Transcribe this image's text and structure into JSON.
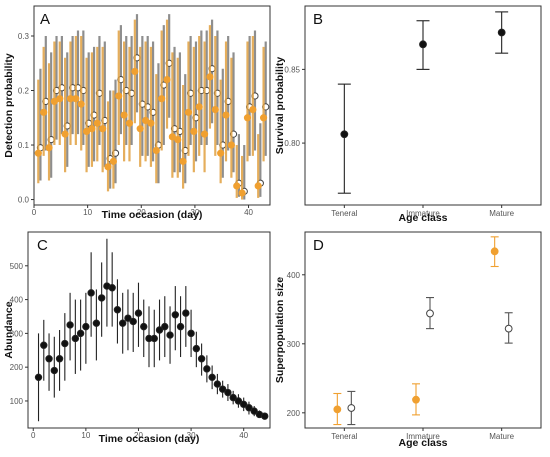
{
  "colors": {
    "orange": "#f0a030",
    "black": "#111111",
    "open": "#ffffff",
    "errbar_gray": "#7a7a7a",
    "errbar_orange": "#e0a040"
  },
  "chart_data": [
    {
      "panel": "A",
      "type": "scatter",
      "xlabel": "Time occasion (day)",
      "ylabel": "Detection probability",
      "xlim": [
        0,
        44
      ],
      "ylim": [
        -0.01,
        0.355
      ],
      "xticks": [
        0,
        10,
        20,
        30,
        40
      ],
      "yticks": [
        0.0,
        0.1,
        0.2,
        0.3
      ],
      "ytick_labels": [
        "0.0",
        "0.1",
        "0.2",
        "0.3"
      ],
      "grid": false,
      "series": [
        {
          "marker": "open-circle",
          "color": "#ffffff",
          "x": [
            1.2,
            2.2,
            3.2,
            4.2,
            5.2,
            6.2,
            7.2,
            8.2,
            9.2,
            10.2,
            11.2,
            12.2,
            13.2,
            14.2,
            15.2,
            16.2,
            17.2,
            18.2,
            19.2,
            20.2,
            21.2,
            22.2,
            23.2,
            24.2,
            25.2,
            26.2,
            27.2,
            28.2,
            29.2,
            30.2,
            31.2,
            32.2,
            33.2,
            34.2,
            35.2,
            36.2,
            37.2,
            38.2,
            39.2,
            40.2,
            41.2,
            42.2,
            43.2
          ],
          "y": [
            0.095,
            0.18,
            0.11,
            0.2,
            0.205,
            0.135,
            0.205,
            0.205,
            0.2,
            0.14,
            0.155,
            0.195,
            0.145,
            0.075,
            0.085,
            0.22,
            0.2,
            0.195,
            0.26,
            0.175,
            0.17,
            0.16,
            0.1,
            0.21,
            0.25,
            0.13,
            0.125,
            0.09,
            0.195,
            0.15,
            0.2,
            0.2,
            0.24,
            0.195,
            0.1,
            0.18,
            0.12,
            0.03,
            0.015,
            0.17,
            0.19,
            0.03,
            0.17
          ],
          "lo": [
            0.035,
            0.09,
            0.04,
            0.11,
            0.12,
            0.06,
            0.12,
            0.12,
            0.1,
            0.06,
            0.07,
            0.1,
            0.06,
            0.02,
            0.03,
            0.12,
            0.1,
            0.1,
            0.16,
            0.08,
            0.08,
            0.07,
            0.03,
            0.1,
            0.15,
            0.05,
            0.05,
            0.03,
            0.1,
            0.07,
            0.1,
            0.1,
            0.14,
            0.1,
            0.04,
            0.09,
            0.05,
            0.005,
            0.0,
            0.08,
            0.09,
            0.005,
            0.08
          ],
          "hi": [
            0.24,
            0.3,
            0.27,
            0.3,
            0.3,
            0.27,
            0.3,
            0.31,
            0.31,
            0.27,
            0.28,
            0.3,
            0.29,
            0.2,
            0.22,
            0.32,
            0.3,
            0.3,
            0.34,
            0.3,
            0.3,
            0.29,
            0.25,
            0.32,
            0.34,
            0.28,
            0.27,
            0.23,
            0.3,
            0.29,
            0.31,
            0.31,
            0.33,
            0.31,
            0.24,
            0.3,
            0.27,
            0.12,
            0.1,
            0.3,
            0.31,
            0.14,
            0.29
          ]
        },
        {
          "marker": "filled-circle",
          "color": "#f0a030",
          "x": [
            0.8,
            1.8,
            2.8,
            3.8,
            4.8,
            5.8,
            6.8,
            7.8,
            8.8,
            9.8,
            10.8,
            11.8,
            12.8,
            13.8,
            14.8,
            15.8,
            16.8,
            17.8,
            18.8,
            19.8,
            20.8,
            21.8,
            22.8,
            23.8,
            24.8,
            25.8,
            26.8,
            27.8,
            28.8,
            29.8,
            30.8,
            31.8,
            32.8,
            33.8,
            34.8,
            35.8,
            36.8,
            37.8,
            38.8,
            39.8,
            40.8,
            41.8,
            42.8
          ],
          "y": [
            0.085,
            0.16,
            0.095,
            0.18,
            0.185,
            0.12,
            0.185,
            0.185,
            0.175,
            0.125,
            0.13,
            0.14,
            0.13,
            0.06,
            0.07,
            0.19,
            0.155,
            0.14,
            0.235,
            0.13,
            0.145,
            0.14,
            0.09,
            0.185,
            0.22,
            0.115,
            0.11,
            0.07,
            0.16,
            0.125,
            0.17,
            0.12,
            0.225,
            0.165,
            0.085,
            0.155,
            0.1,
            0.025,
            0.012,
            0.15,
            0.165,
            0.025,
            0.15
          ],
          "lo": [
            0.03,
            0.08,
            0.035,
            0.1,
            0.1,
            0.05,
            0.1,
            0.1,
            0.09,
            0.05,
            0.06,
            0.07,
            0.05,
            0.015,
            0.02,
            0.1,
            0.07,
            0.07,
            0.14,
            0.06,
            0.07,
            0.06,
            0.03,
            0.09,
            0.13,
            0.04,
            0.04,
            0.02,
            0.08,
            0.05,
            0.08,
            0.05,
            0.13,
            0.08,
            0.03,
            0.07,
            0.04,
            0.003,
            0.0,
            0.07,
            0.08,
            0.003,
            0.07
          ],
          "hi": [
            0.22,
            0.28,
            0.25,
            0.29,
            0.29,
            0.26,
            0.29,
            0.3,
            0.3,
            0.26,
            0.27,
            0.28,
            0.28,
            0.18,
            0.2,
            0.31,
            0.29,
            0.28,
            0.33,
            0.28,
            0.29,
            0.28,
            0.23,
            0.31,
            0.33,
            0.27,
            0.26,
            0.21,
            0.29,
            0.28,
            0.3,
            0.29,
            0.32,
            0.3,
            0.22,
            0.29,
            0.26,
            0.1,
            0.08,
            0.29,
            0.3,
            0.12,
            0.28
          ]
        }
      ]
    },
    {
      "panel": "B",
      "type": "scatter",
      "xlabel": "Age class",
      "ylabel": "Survival probability",
      "categories": [
        "Teneral",
        "Immature",
        "Mature"
      ],
      "ylim": [
        0.758,
        0.893
      ],
      "yticks": [
        0.8,
        0.85
      ],
      "ytick_labels": [
        "0.80",
        "0.85"
      ],
      "grid": false,
      "series": [
        {
          "marker": "filled-circle",
          "color": "#111111",
          "values": [
            0.806,
            0.867,
            0.875
          ],
          "lo": [
            0.766,
            0.85,
            0.861
          ],
          "hi": [
            0.84,
            0.883,
            0.889
          ]
        }
      ]
    },
    {
      "panel": "C",
      "type": "scatter",
      "xlabel": "Time occasion (day)",
      "ylabel": "Abundance",
      "xlim": [
        -1,
        45
      ],
      "ylim": [
        20,
        600
      ],
      "xticks": [
        0,
        10,
        20,
        30,
        40
      ],
      "yticks": [
        100,
        200,
        300,
        400,
        500
      ],
      "grid": false,
      "series": [
        {
          "marker": "filled-circle",
          "color": "#111111",
          "x": [
            1,
            2,
            3,
            4,
            5,
            6,
            7,
            8,
            9,
            10,
            11,
            12,
            13,
            14,
            15,
            16,
            17,
            18,
            19,
            20,
            21,
            22,
            23,
            24,
            25,
            26,
            27,
            28,
            29,
            30,
            31,
            32,
            33,
            34,
            35,
            36,
            37,
            38,
            39,
            40,
            41,
            42,
            43,
            44
          ],
          "y": [
            170,
            265,
            225,
            190,
            225,
            270,
            325,
            285,
            300,
            320,
            420,
            330,
            405,
            440,
            435,
            370,
            330,
            345,
            335,
            360,
            320,
            285,
            285,
            310,
            320,
            295,
            355,
            320,
            360,
            300,
            255,
            225,
            195,
            170,
            150,
            135,
            125,
            110,
            100,
            90,
            80,
            70,
            60,
            55
          ],
          "lo": [
            40,
            160,
            130,
            110,
            130,
            160,
            220,
            180,
            190,
            210,
            290,
            220,
            290,
            320,
            320,
            270,
            240,
            250,
            245,
            260,
            230,
            200,
            200,
            220,
            230,
            210,
            250,
            230,
            260,
            230,
            200,
            175,
            155,
            135,
            120,
            110,
            100,
            90,
            80,
            70,
            60,
            55,
            50,
            45
          ],
          "hi": [
            300,
            340,
            300,
            290,
            310,
            360,
            420,
            400,
            400,
            420,
            540,
            430,
            510,
            580,
            540,
            460,
            420,
            430,
            420,
            450,
            400,
            380,
            370,
            400,
            410,
            380,
            440,
            410,
            440,
            370,
            305,
            270,
            235,
            205,
            180,
            160,
            150,
            130,
            120,
            110,
            98,
            85,
            72,
            65
          ]
        }
      ]
    },
    {
      "panel": "D",
      "type": "scatter",
      "xlabel": "Age class",
      "ylabel": "Superpopulation size",
      "categories": [
        "Teneral",
        "Immature",
        "Mature"
      ],
      "ylim": [
        178,
        462
      ],
      "yticks": [
        200,
        300,
        400
      ],
      "grid": false,
      "series": [
        {
          "marker": "filled-circle",
          "color": "#f0a030",
          "values": [
            205,
            219,
            434
          ],
          "lo": [
            183,
            197,
            412
          ],
          "hi": [
            228,
            242,
            455
          ]
        },
        {
          "marker": "open-circle",
          "color": "#ffffff",
          "values": [
            207,
            344,
            322
          ],
          "lo": [
            183,
            322,
            301
          ],
          "hi": [
            231,
            367,
            345
          ]
        }
      ]
    }
  ]
}
